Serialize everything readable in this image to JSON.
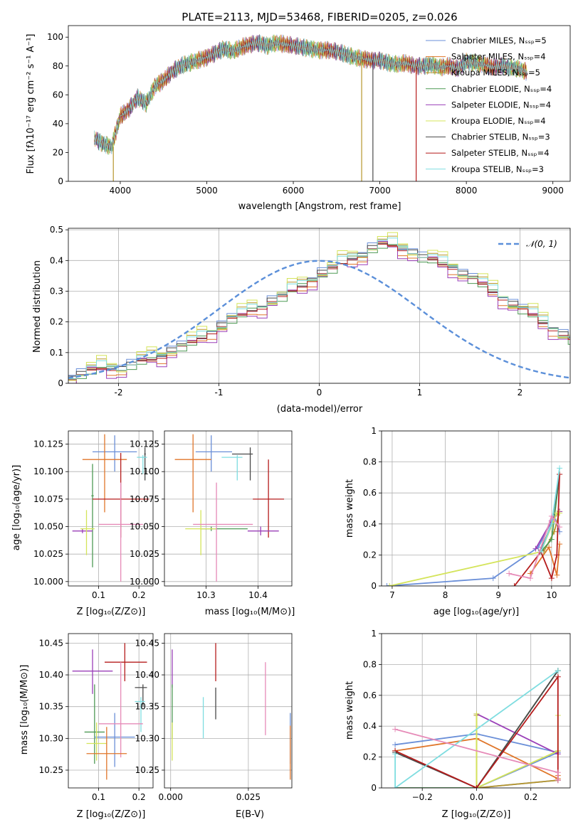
{
  "colors": [
    "#6a8fd8",
    "#e0762a",
    "#b7962d",
    "#4f9a55",
    "#9a3fb8",
    "#d4e45a",
    "#4a4a4a",
    "#b51c1c",
    "#7fdde0"
  ],
  "extra_color": "#e68bb8",
  "chart_data": [
    {
      "id": "spectrum",
      "type": "line",
      "title": "PLATE=2113, MJD=53468, FIBERID=0205, z=0.026",
      "xlabel": "wavelength [Angstrom, rest frame]",
      "ylabel": "Flux [fλ10⁻¹⁷ erg cm⁻² s⁻¹ A⁻¹]",
      "xlim": [
        3400,
        9200
      ],
      "ylim": [
        0,
        108
      ],
      "xticks": [
        4000,
        5000,
        6000,
        7000,
        8000,
        9000
      ],
      "yticks": [
        0,
        20,
        40,
        60,
        80,
        100
      ],
      "grid": false,
      "legend_position": "upper right",
      "x": [
        3700,
        3800,
        3900,
        4000,
        4100,
        4200,
        4300,
        4400,
        4500,
        4600,
        4700,
        4800,
        4900,
        5000,
        5100,
        5200,
        5300,
        5400,
        5500,
        5600,
        5700,
        5800,
        5900,
        6000,
        6100,
        6200,
        6300,
        6400,
        6500,
        6600,
        6700,
        6800,
        6900,
        7000,
        7100,
        7200,
        7300,
        7400,
        7500,
        7600,
        7700,
        7800,
        7900,
        8000,
        8100,
        8200,
        8300,
        8400,
        8500,
        8600,
        8700
      ],
      "y": [
        30,
        26,
        24,
        45,
        50,
        58,
        54,
        66,
        70,
        76,
        80,
        82,
        84,
        86,
        89,
        92,
        90,
        93,
        95,
        96,
        94,
        96,
        95,
        94,
        93,
        92,
        91,
        91,
        90,
        88,
        86,
        85,
        84,
        84,
        82,
        81,
        82,
        80,
        80,
        81,
        79,
        80,
        78,
        83,
        82,
        81,
        79,
        80,
        79,
        78,
        76
      ],
      "series": [
        {
          "name": "Chabrier MILES, N_SSP=5"
        },
        {
          "name": "Salpeter MILES, N_SSP=4"
        },
        {
          "name": "Kroupa MILES, N_SSP=5"
        },
        {
          "name": "Chabrier ELODIE, N_SSP=4"
        },
        {
          "name": "Salpeter ELODIE, N_SSP=4"
        },
        {
          "name": "Kroupa ELODIE, N_SSP=4"
        },
        {
          "name": "Chabrier STELIB, N_SSP=3"
        },
        {
          "name": "Salpeter STELIB, N_SSP=4"
        },
        {
          "name": "Kroupa STELIB, N_SSP=3"
        }
      ],
      "dropouts": [
        {
          "series": 2,
          "x": 3920,
          "y_end": 0
        },
        {
          "series": 2,
          "x": 6790,
          "y_end": 0
        },
        {
          "series": 6,
          "x": 6920,
          "y_end": 0
        },
        {
          "series": 7,
          "x": 7420,
          "y_end": 0
        }
      ]
    },
    {
      "id": "residuals",
      "type": "step",
      "xlabel": "(data-model)/error",
      "ylabel": "Normed distribution",
      "xlim": [
        -2.5,
        2.5
      ],
      "ylim": [
        0,
        0.505
      ],
      "xticks": [
        -2,
        -1,
        0,
        1,
        2
      ],
      "yticks": [
        0.0,
        0.1,
        0.2,
        0.3,
        0.4,
        0.5
      ],
      "grid": true,
      "legend_position": "upper right",
      "reference_curve": {
        "name": "𝒩(0, 1)",
        "mean": 0,
        "sigma": 1
      },
      "bin_edges_start": -2.5,
      "bin_width": 0.1,
      "bin_values": [
        0.02,
        0.03,
        0.04,
        0.05,
        0.05,
        0.05,
        0.06,
        0.07,
        0.08,
        0.09,
        0.11,
        0.12,
        0.13,
        0.15,
        0.17,
        0.19,
        0.21,
        0.22,
        0.24,
        0.25,
        0.27,
        0.28,
        0.3,
        0.32,
        0.34,
        0.36,
        0.37,
        0.39,
        0.41,
        0.42,
        0.44,
        0.45,
        0.45,
        0.44,
        0.43,
        0.41,
        0.4,
        0.39,
        0.38,
        0.36,
        0.34,
        0.32,
        0.3,
        0.28,
        0.26,
        0.24,
        0.22,
        0.2,
        0.18,
        0.16,
        0.14,
        0.12,
        0.11,
        0.1,
        0.09,
        0.08,
        0.07,
        0.06,
        0.06,
        0.05,
        0.04,
        0.04,
        0.04,
        0.03,
        0.03,
        0.03,
        0.02,
        0.02,
        0.02,
        0.02
      ],
      "series_offsets": [
        0.012,
        -0.018,
        0.02,
        -0.01,
        -0.025,
        0.028,
        0.006,
        -0.006,
        0.016
      ]
    },
    {
      "id": "age_vs_Z",
      "type": "errorbar",
      "xlabel": "Z [log₁₀(Z/Z⊙)]",
      "ylabel": "age  [log₁₀(age/yr)]",
      "xlim": [
        0.025,
        0.235
      ],
      "ylim": [
        9.996,
        10.137
      ],
      "xticks": [
        0.1,
        0.2
      ],
      "yticks": [
        10.0,
        10.025,
        10.05,
        10.075,
        10.1,
        10.125
      ],
      "ytick_labels": [
        "10.000",
        "10.025",
        "10.050",
        "10.075",
        "10.100",
        "10.125"
      ],
      "grid": true,
      "points": [
        {
          "c": 0,
          "x": 0.14,
          "xlo": 0.085,
          "xhi": 0.195,
          "y": 10.118,
          "ylo": 10.1,
          "yhi": 10.133
        },
        {
          "c": 1,
          "x": 0.115,
          "xlo": 0.06,
          "xhi": 0.17,
          "y": 10.111,
          "ylo": 10.063,
          "yhi": 10.134
        },
        {
          "c": 3,
          "x": 0.085,
          "xlo": 0.082,
          "xhi": 0.088,
          "y": 10.078,
          "ylo": 10.013,
          "yhi": 10.107
        },
        {
          "c": 6,
          "x": 0.215,
          "xlo": 0.213,
          "xhi": 0.217,
          "y": 10.116,
          "ylo": 10.092,
          "yhi": 10.122
        },
        {
          "c": 7,
          "x": 0.155,
          "xlo": 0.085,
          "xhi": 0.225,
          "y": 10.075,
          "ylo": 10.04,
          "yhi": 10.117
        },
        {
          "c": 8,
          "x": 0.21,
          "xlo": 0.195,
          "xhi": 0.22,
          "y": 10.113,
          "ylo": 10.098,
          "yhi": 10.115
        },
        {
          "c": 4,
          "x": 0.06,
          "xlo": 0.035,
          "xhi": 0.085,
          "y": 10.046,
          "ylo": 10.044,
          "yhi": 10.048
        },
        {
          "c": 5,
          "x": 0.07,
          "xlo": 0.055,
          "xhi": 0.09,
          "y": 10.048,
          "ylo": 10.024,
          "yhi": 10.065
        },
        {
          "c": 9,
          "x": 0.155,
          "xlo": 0.1,
          "xhi": 0.21,
          "y": 10.052,
          "ylo": 10.0,
          "yhi": 10.09
        }
      ]
    },
    {
      "id": "age_vs_mass",
      "type": "errorbar",
      "xlabel": "mass [log₁₀(M/M⊙)]",
      "ylabel": "",
      "xlim": [
        10.22,
        10.465
      ],
      "ylim": [
        9.996,
        10.137
      ],
      "xticks": [
        10.3,
        10.4
      ],
      "yticks": [
        10.0,
        10.025,
        10.05,
        10.075,
        10.1,
        10.125
      ],
      "ytick_labels": [
        "10.000",
        "10.025",
        "10.050",
        "10.075",
        "10.100",
        "10.125"
      ],
      "grid": true,
      "points": [
        {
          "c": 0,
          "x": 10.31,
          "xlo": 10.28,
          "xhi": 10.35,
          "y": 10.118,
          "ylo": 10.1,
          "yhi": 10.133
        },
        {
          "c": 1,
          "x": 10.275,
          "xlo": 10.24,
          "xhi": 10.31,
          "y": 10.111,
          "ylo": 10.063,
          "yhi": 10.134
        },
        {
          "c": 6,
          "x": 10.385,
          "xlo": 10.35,
          "xhi": 10.39,
          "y": 10.116,
          "ylo": 10.092,
          "yhi": 10.122
        },
        {
          "c": 8,
          "x": 10.36,
          "xlo": 10.33,
          "xhi": 10.37,
          "y": 10.113,
          "ylo": 10.092,
          "yhi": 10.115
        },
        {
          "c": 7,
          "x": 10.42,
          "xlo": 10.39,
          "xhi": 10.45,
          "y": 10.075,
          "ylo": 10.04,
          "yhi": 10.111
        },
        {
          "c": 3,
          "x": 10.31,
          "xlo": 10.29,
          "xhi": 10.38,
          "y": 10.048,
          "ylo": 10.046,
          "yhi": 10.05
        },
        {
          "c": 4,
          "x": 10.405,
          "xlo": 10.38,
          "xhi": 10.44,
          "y": 10.046,
          "ylo": 10.042,
          "yhi": 10.05
        },
        {
          "c": 5,
          "x": 10.29,
          "xlo": 10.26,
          "xhi": 10.32,
          "y": 10.048,
          "ylo": 10.024,
          "yhi": 10.065
        },
        {
          "c": 9,
          "x": 10.32,
          "xlo": 10.275,
          "xhi": 10.39,
          "y": 10.052,
          "ylo": 10.0,
          "yhi": 10.09
        }
      ]
    },
    {
      "id": "weight_vs_age",
      "type": "line",
      "xlabel": "age  [log₁₀(age/yr)]",
      "ylabel": "mass weight",
      "xlim": [
        6.8,
        10.35
      ],
      "ylim": [
        0,
        1.0
      ],
      "xticks": [
        7,
        8,
        9,
        10
      ],
      "yticks": [
        0.0,
        0.2,
        0.4,
        0.6,
        0.8,
        1.0
      ],
      "grid": true,
      "series": [
        {
          "c": 0,
          "x": [
            6.9,
            8.9,
            9.75,
            10.05,
            10.15
          ],
          "y": [
            0.0,
            0.05,
            0.25,
            0.45,
            0.35
          ]
        },
        {
          "c": 1,
          "x": [
            9.6,
            9.95,
            10.1,
            10.15
          ],
          "y": [
            0.08,
            0.25,
            0.07,
            0.27
          ]
        },
        {
          "c": 2,
          "x": [
            9.85,
            10.05,
            10.15
          ],
          "y": [
            0.22,
            0.35,
            0.48
          ]
        },
        {
          "c": 3,
          "x": [
            9.8,
            10.0,
            10.15
          ],
          "y": [
            0.22,
            0.3,
            0.72
          ]
        },
        {
          "c": 4,
          "x": [
            9.7,
            10.0,
            10.15
          ],
          "y": [
            0.24,
            0.42,
            0.48
          ]
        },
        {
          "c": 5,
          "x": [
            6.95,
            9.8,
            10.1,
            10.15
          ],
          "y": [
            0.0,
            0.22,
            0.47,
            0.47
          ]
        },
        {
          "c": 6,
          "x": [
            9.8,
            10.0,
            10.15
          ],
          "y": [
            0.23,
            0.4,
            0.72
          ]
        },
        {
          "c": 7,
          "x": [
            9.3,
            9.8,
            10.0,
            10.1,
            10.15
          ],
          "y": [
            0.0,
            0.22,
            0.05,
            0.2,
            0.72
          ]
        },
        {
          "c": 8,
          "x": [
            9.8,
            10.0,
            10.15
          ],
          "y": [
            0.22,
            0.4,
            0.76
          ]
        },
        {
          "c": 9,
          "x": [
            9.2,
            9.6,
            10.0,
            10.15
          ],
          "y": [
            0.08,
            0.05,
            0.45,
            0.38
          ]
        }
      ]
    },
    {
      "id": "mass_vs_Z",
      "type": "errorbar",
      "xlabel": "Z [log₁₀(Z/Z⊙)]",
      "ylabel": "mass [log₁₀(M/M⊙)]",
      "xlim": [
        0.025,
        0.235
      ],
      "ylim": [
        10.222,
        10.465
      ],
      "xticks": [
        0.1,
        0.2
      ],
      "yticks": [
        10.25,
        10.3,
        10.35,
        10.4,
        10.45
      ],
      "ytick_labels": [
        "10.25",
        "10.30",
        "10.35",
        "10.40",
        "10.45"
      ],
      "grid": true,
      "points": [
        {
          "c": 7,
          "x": 0.165,
          "xlo": 0.115,
          "xhi": 0.22,
          "y": 10.42,
          "ylo": 10.39,
          "yhi": 10.45
        },
        {
          "c": 4,
          "x": 0.085,
          "xlo": 0.035,
          "xhi": 0.135,
          "y": 10.406,
          "ylo": 10.37,
          "yhi": 10.44
        },
        {
          "c": 6,
          "x": 0.21,
          "xlo": 0.19,
          "xhi": 0.22,
          "y": 10.38,
          "ylo": 10.35,
          "yhi": 10.385
        },
        {
          "c": 8,
          "x": 0.205,
          "xlo": 0.19,
          "xhi": 0.215,
          "y": 10.358,
          "ylo": 10.31,
          "yhi": 10.365
        },
        {
          "c": 3,
          "x": 0.09,
          "xlo": 0.065,
          "xhi": 0.115,
          "y": 10.31,
          "ylo": 10.26,
          "yhi": 10.385
        },
        {
          "c": 0,
          "x": 0.14,
          "xlo": 0.09,
          "xhi": 0.19,
          "y": 10.302,
          "ylo": 10.255,
          "yhi": 10.34
        },
        {
          "c": 9,
          "x": 0.155,
          "xlo": 0.1,
          "xhi": 0.21,
          "y": 10.323,
          "ylo": 10.27,
          "yhi": 10.42
        },
        {
          "c": 5,
          "x": 0.095,
          "xlo": 0.07,
          "xhi": 0.12,
          "y": 10.292,
          "ylo": 10.265,
          "yhi": 10.325
        },
        {
          "c": 1,
          "x": 0.12,
          "xlo": 0.07,
          "xhi": 0.17,
          "y": 10.276,
          "ylo": 10.235,
          "yhi": 10.318
        }
      ]
    },
    {
      "id": "mass_vs_ebv",
      "type": "errorbar",
      "xlabel": "E(B-V)",
      "ylabel": "",
      "xlim": [
        -0.002,
        0.039
      ],
      "ylim": [
        10.222,
        10.465
      ],
      "xticks": [
        0.0,
        0.025
      ],
      "xtick_labels": [
        "0.000",
        "0.025"
      ],
      "yticks": [
        10.25,
        10.3,
        10.35,
        10.4,
        10.45
      ],
      "ytick_labels": [
        "10.25",
        "10.30",
        "10.35",
        "10.40",
        "10.45"
      ],
      "grid": true,
      "points": [
        {
          "c": 4,
          "x": 0.0005,
          "xlo": 0.0005,
          "xhi": 0.0005,
          "y": 10.41,
          "ylo": 10.38,
          "yhi": 10.44
        },
        {
          "c": 3,
          "x": 0.0005,
          "xlo": 0.0005,
          "xhi": 0.0005,
          "y": 10.35,
          "ylo": 10.3,
          "yhi": 10.385
        },
        {
          "c": 5,
          "x": 0.0005,
          "xlo": 0.0005,
          "xhi": 0.0005,
          "y": 10.29,
          "ylo": 10.265,
          "yhi": 10.325
        },
        {
          "c": 8,
          "x": 0.0105,
          "xlo": 0.0105,
          "xhi": 0.0105,
          "y": 10.335,
          "ylo": 10.3,
          "yhi": 10.365
        },
        {
          "c": 7,
          "x": 0.0145,
          "xlo": 0.0145,
          "xhi": 0.0145,
          "y": 10.42,
          "ylo": 10.39,
          "yhi": 10.45
        },
        {
          "c": 6,
          "x": 0.0145,
          "xlo": 0.0145,
          "xhi": 0.0145,
          "y": 10.355,
          "ylo": 10.33,
          "yhi": 10.38
        },
        {
          "c": 9,
          "x": 0.0305,
          "xlo": 0.0305,
          "xhi": 0.0305,
          "y": 10.36,
          "ylo": 10.305,
          "yhi": 10.42
        },
        {
          "c": 0,
          "x": 0.0385,
          "xlo": 0.0385,
          "xhi": 0.0385,
          "y": 10.3,
          "ylo": 10.26,
          "yhi": 10.34
        },
        {
          "c": 1,
          "x": 0.0385,
          "xlo": 0.0385,
          "xhi": 0.0385,
          "y": 10.28,
          "ylo": 10.235,
          "yhi": 10.32
        }
      ]
    },
    {
      "id": "weight_vs_Z",
      "type": "line",
      "xlabel": "Z [log₁₀(Z/Z⊙)]",
      "ylabel": "mass weight",
      "xlim": [
        -0.35,
        0.345
      ],
      "ylim": [
        0,
        1.0
      ],
      "xticks": [
        -0.2,
        0.0,
        0.2
      ],
      "xtick_labels": [
        "−0.2",
        "0.0",
        "0.2"
      ],
      "yticks": [
        0.0,
        0.2,
        0.4,
        0.6,
        0.8,
        1.0
      ],
      "grid": true,
      "series": [
        {
          "c": 0,
          "x": [
            -0.3,
            0.0,
            0.3,
            0.0,
            0.3
          ],
          "y": [
            0.28,
            0.35,
            0.23,
            0.0,
            0.05
          ]
        },
        {
          "c": 1,
          "x": [
            -0.3,
            0.0,
            0.3,
            0.3
          ],
          "y": [
            0.24,
            0.32,
            0.06,
            0.08
          ]
        },
        {
          "c": 2,
          "x": [
            0.0,
            0.0,
            0.3
          ],
          "y": [
            0.47,
            0.0,
            0.05
          ]
        },
        {
          "c": 3,
          "x": [
            -0.3,
            0.0,
            0.3
          ],
          "y": [
            0.0,
            0.0,
            0.76
          ]
        },
        {
          "c": 4,
          "x": [
            0.0,
            0.3,
            0.3
          ],
          "y": [
            0.48,
            0.22,
            0.24
          ]
        },
        {
          "c": 5,
          "x": [
            0.0,
            0.0,
            0.3,
            0.3
          ],
          "y": [
            0.48,
            0.0,
            0.24,
            0.47
          ]
        },
        {
          "c": 6,
          "x": [
            -0.3,
            0.0,
            0.3
          ],
          "y": [
            0.23,
            0.0,
            0.76
          ]
        },
        {
          "c": 7,
          "x": [
            -0.3,
            0.0,
            0.3,
            0.3
          ],
          "y": [
            0.24,
            0.0,
            0.72,
            0.05
          ]
        },
        {
          "c": 8,
          "x": [
            -0.3,
            -0.3,
            0.3
          ],
          "y": [
            0.22,
            0.0,
            0.76
          ]
        },
        {
          "c": 9,
          "x": [
            -0.3,
            0.3,
            0.3
          ],
          "y": [
            0.38,
            0.1,
            0.05
          ]
        }
      ]
    }
  ]
}
